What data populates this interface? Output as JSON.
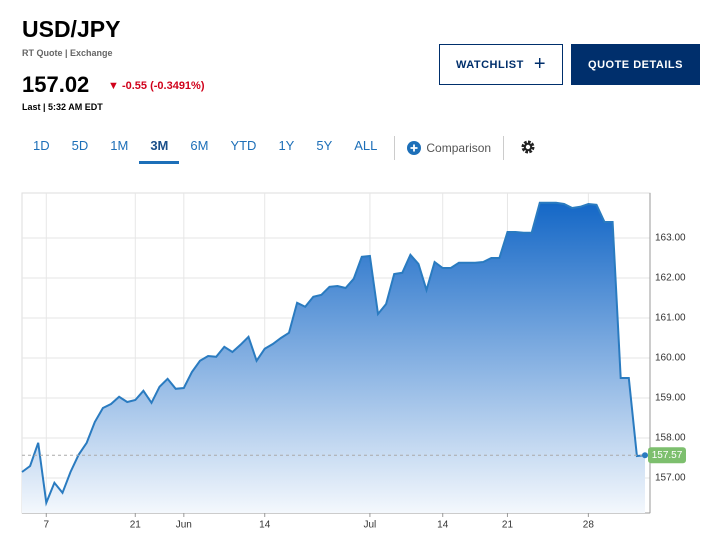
{
  "header": {
    "symbol": "USD/JPY",
    "quote_type": "RT Quote | Exchange",
    "price": 157.02,
    "change": "-0.55 (-0.3491%)",
    "last_label": "Last | 5:32 AM EDT"
  },
  "buttons": [
    "WATCHLIST",
    "QUOTE DETAILS"
  ],
  "tabs": [
    "1D",
    "5D",
    "1M",
    "3M",
    "6M",
    "YTD",
    "1Y",
    "5Y",
    "ALL"
  ],
  "active_tab": 3,
  "comparison": "Comparison",
  "chart_data": {
    "type": "area",
    "categories": [
      null,
      null,
      null,
      "7",
      null,
      null,
      null,
      null,
      null,
      null,
      null,
      null,
      null,
      null,
      "21",
      null,
      null,
      null,
      null,
      null,
      "Jun",
      null,
      null,
      null,
      null,
      null,
      null,
      null,
      null,
      null,
      "14",
      null,
      null,
      null,
      null,
      null,
      null,
      null,
      null,
      null,
      null,
      null,
      null,
      "Jul",
      null,
      null,
      null,
      null,
      null,
      null,
      null,
      null,
      "14",
      null,
      null,
      null,
      null,
      null,
      null,
      null,
      "21",
      null,
      null,
      null,
      null,
      null,
      null,
      null,
      null,
      null,
      "28",
      null,
      null,
      null,
      null,
      null,
      null,
      null
    ],
    "series": [
      {
        "name": "USD/JPY",
        "color": "#2a7bc0",
        "values": [
          157.15,
          157.3,
          157.88,
          156.38,
          156.88,
          156.63,
          157.15,
          157.58,
          157.88,
          158.4,
          158.75,
          158.85,
          159.03,
          158.9,
          158.95,
          159.18,
          158.88,
          159.28,
          159.48,
          159.23,
          159.25,
          159.65,
          159.93,
          160.05,
          160.03,
          160.28,
          160.15,
          160.33,
          160.53,
          159.93,
          160.23,
          160.35,
          160.5,
          160.63,
          161.38,
          161.28,
          161.53,
          161.58,
          161.78,
          161.8,
          161.75,
          161.98,
          162.53,
          162.55,
          161.1,
          161.35,
          162.1,
          162.13,
          162.58,
          162.35,
          161.7,
          162.4,
          162.25,
          162.25,
          162.38,
          162.38,
          162.38,
          162.4,
          162.5,
          162.5,
          163.15,
          163.15,
          163.13,
          163.13,
          163.88,
          163.88,
          163.88,
          163.85,
          163.75,
          163.78,
          163.85,
          163.83,
          163.4,
          163.4,
          159.5,
          159.5,
          157.55,
          157.57
        ]
      }
    ],
    "ylim": [
      156.125,
      164.125
    ],
    "yticks": [
      {
        "value": 157,
        "label": "157.00"
      },
      {
        "value": 158,
        "label": "158.00"
      },
      {
        "value": 159,
        "label": "159.00"
      },
      {
        "value": 160,
        "label": "160.00"
      },
      {
        "value": 161,
        "label": "161.00"
      },
      {
        "value": 162,
        "label": "162.00"
      },
      {
        "value": 163,
        "label": "163.00"
      }
    ],
    "grid": true
  }
}
